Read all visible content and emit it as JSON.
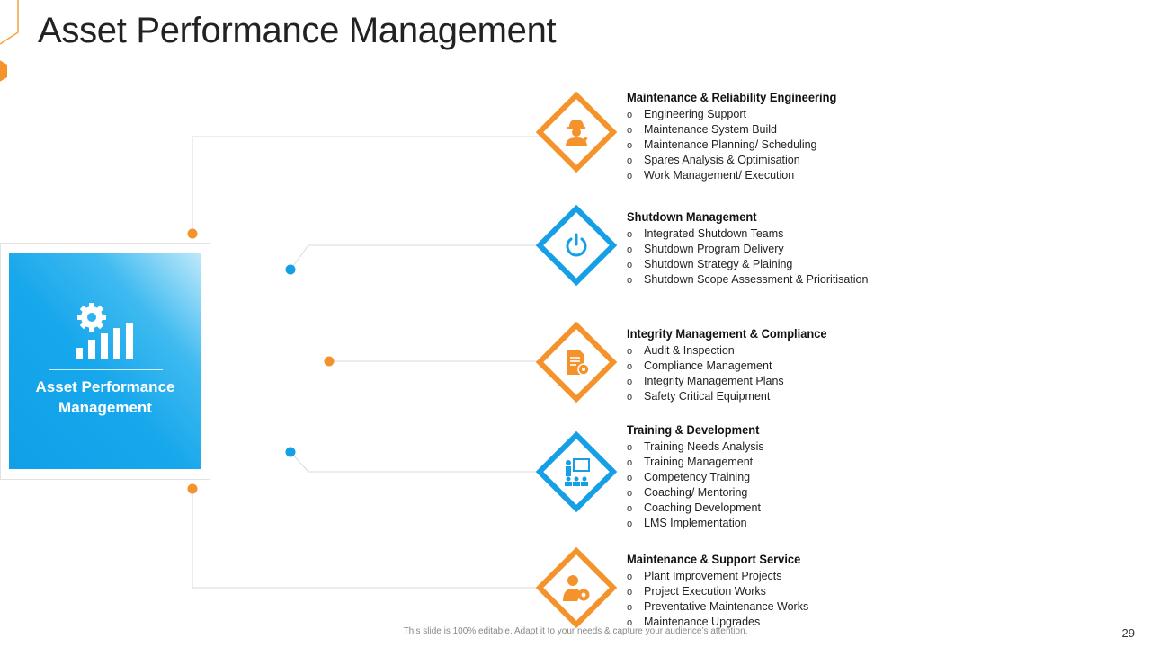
{
  "title": "Asset Performance Management",
  "colors": {
    "orange": "#f4922c",
    "blue": "#159fe6",
    "line": "#d9d9d9"
  },
  "hub": {
    "label": "Asset Performance\nManagement",
    "icon": "gear-bar-chart-icon"
  },
  "categories": [
    {
      "title": "Maintenance & Reliability Engineering",
      "color": "orange",
      "icon": "engineer-with-tools-icon",
      "items": [
        "Engineering Support",
        "Maintenance System Build",
        "Maintenance Planning/ Scheduling",
        "Spares Analysis & Optimisation",
        "Work Management/ Execution"
      ]
    },
    {
      "title": "Shutdown Management",
      "color": "blue",
      "icon": "power-icon",
      "items": [
        "Integrated Shutdown Teams",
        "Shutdown Program Delivery",
        "Shutdown Strategy & Plaining",
        "Shutdown Scope Assessment & Prioritisation"
      ]
    },
    {
      "title": "Integrity Management & Compliance",
      "color": "orange",
      "icon": "document-gear-icon",
      "items": [
        "Audit & Inspection",
        "Compliance Management",
        "Integrity Management Plans",
        "Safety Critical Equipment"
      ]
    },
    {
      "title": "Training & Development",
      "color": "blue",
      "icon": "presentation-training-icon",
      "items": [
        "Training Needs Analysis",
        "Training Management",
        "Competency Training",
        "Coaching/ Mentoring",
        "Coaching Development",
        "LMS Implementation"
      ]
    },
    {
      "title": "Maintenance & Support Service",
      "color": "orange",
      "icon": "person-gear-icon",
      "items": [
        "Plant Improvement Projects",
        "Project Execution Works",
        "Preventative Maintenance Works",
        "Maintenance Upgrades"
      ]
    }
  ],
  "bullet_glyph": "o",
  "footer_note": "This slide is 100% editable. Adapt it to your needs & capture your audience’s attention.",
  "page_number": "29"
}
